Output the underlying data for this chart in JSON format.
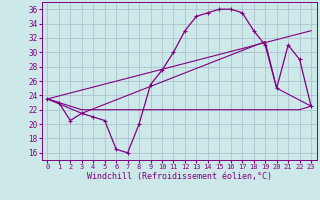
{
  "xlabel": "Windchill (Refroidissement éolien,°C)",
  "bg_color": "#cde8e8",
  "line_color": "#800080",
  "grid_color": "#aabbcc",
  "ylim": [
    15,
    37
  ],
  "xlim": [
    -0.5,
    23.5
  ],
  "yticks": [
    16,
    18,
    20,
    22,
    24,
    26,
    28,
    30,
    32,
    34,
    36
  ],
  "xticks": [
    0,
    1,
    2,
    3,
    4,
    5,
    6,
    7,
    8,
    9,
    10,
    11,
    12,
    13,
    14,
    15,
    16,
    17,
    18,
    19,
    20,
    21,
    22,
    23
  ],
  "curve1_x": [
    0,
    1,
    2,
    3,
    4,
    5,
    6,
    7,
    8,
    9,
    10,
    11,
    12,
    13,
    14,
    15,
    16,
    17,
    18,
    19,
    20,
    21,
    22,
    23
  ],
  "curve1_y": [
    23.5,
    23.0,
    20.5,
    21.5,
    21.0,
    20.5,
    16.5,
    16.0,
    20.0,
    25.5,
    27.5,
    30.0,
    33.0,
    35.0,
    35.5,
    36.0,
    36.0,
    35.5,
    33.0,
    31.0,
    25.0,
    31.0,
    29.0,
    22.5
  ],
  "curve2_x": [
    0,
    2,
    3,
    22,
    23
  ],
  "curve2_y": [
    23.5,
    22.5,
    22.0,
    22.0,
    22.5
  ],
  "curve3_x": [
    0,
    23
  ],
  "curve3_y": [
    23.5,
    33.0
  ],
  "curve4_x": [
    0,
    3,
    19,
    20,
    23
  ],
  "curve4_y": [
    23.5,
    21.5,
    31.5,
    25.0,
    22.5
  ]
}
